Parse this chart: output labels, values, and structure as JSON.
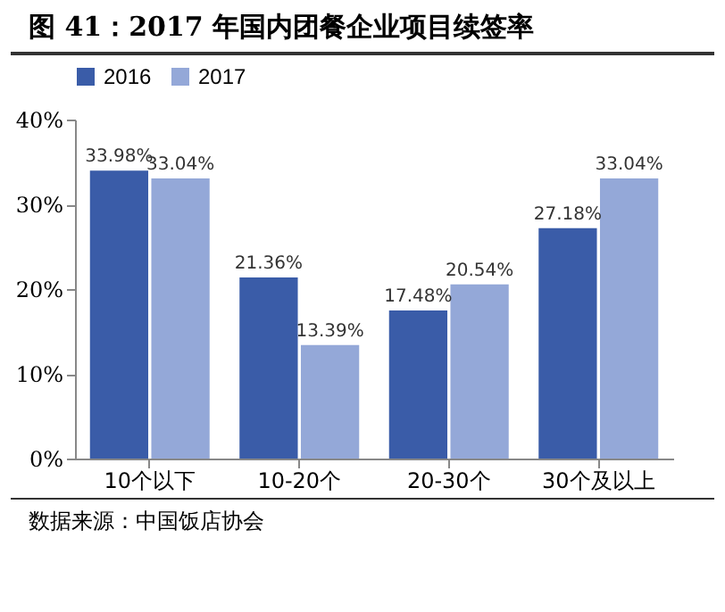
{
  "chart_data": {
    "type": "bar",
    "title": "图 41：2017 年国内团餐企业项目续签率",
    "categories": [
      "10个以下",
      "10-20个",
      "20-30个",
      "30个及以上"
    ],
    "series": [
      {
        "name": "2016",
        "color": "#3a5ca8",
        "values": [
          33.98,
          21.36,
          17.48,
          27.18
        ],
        "value_labels": [
          "33.98%",
          "21.36%",
          "17.48%",
          "27.18%"
        ]
      },
      {
        "name": "2017",
        "color": "#94a8d8",
        "values": [
          33.04,
          13.39,
          20.54,
          33.04
        ],
        "value_labels": [
          "33.04%",
          "13.39%",
          "20.54%",
          "33.04%"
        ]
      }
    ],
    "ylim": [
      0,
      40
    ],
    "yticks": [
      {
        "value": 0,
        "label": "0%"
      },
      {
        "value": 10,
        "label": "10%"
      },
      {
        "value": 20,
        "label": "20%"
      },
      {
        "value": 30,
        "label": "30%"
      },
      {
        "value": 40,
        "label": "40%"
      }
    ],
    "grid": false,
    "legend": "top",
    "annotations": [
      "数据来源：中国饭店协会"
    ]
  }
}
